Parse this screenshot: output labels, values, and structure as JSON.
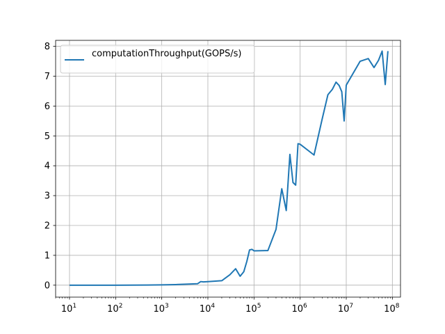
{
  "chart_data": {
    "type": "line",
    "title": "",
    "xlabel": "",
    "ylabel": "",
    "xscale": "log",
    "xlim": [
      5,
      150000000
    ],
    "ylim": [
      -0.4,
      8.2
    ],
    "grid": true,
    "legend_position": "top-left",
    "x_ticks": [
      {
        "value": 10,
        "base": "10",
        "exp": "1"
      },
      {
        "value": 100,
        "base": "10",
        "exp": "2"
      },
      {
        "value": 1000,
        "base": "10",
        "exp": "3"
      },
      {
        "value": 10000,
        "base": "10",
        "exp": "4"
      },
      {
        "value": 100000,
        "base": "10",
        "exp": "5"
      },
      {
        "value": 1000000,
        "base": "10",
        "exp": "6"
      },
      {
        "value": 10000000,
        "base": "10",
        "exp": "7"
      },
      {
        "value": 100000000,
        "base": "10",
        "exp": "8"
      }
    ],
    "y_ticks": [
      {
        "value": 0,
        "label": "0"
      },
      {
        "value": 1,
        "label": "1"
      },
      {
        "value": 2,
        "label": "2"
      },
      {
        "value": 3,
        "label": "3"
      },
      {
        "value": 4,
        "label": "4"
      },
      {
        "value": 5,
        "label": "5"
      },
      {
        "value": 6,
        "label": "6"
      },
      {
        "value": 7,
        "label": "7"
      },
      {
        "value": 8,
        "label": "8"
      }
    ],
    "series": [
      {
        "name": "computationThroughput(GOPS/s)",
        "color": "#1f77b4",
        "x": [
          10,
          100,
          500,
          1000,
          2000,
          6000,
          7000,
          8000,
          10000,
          20000,
          30000,
          40000,
          50000,
          60000,
          70000,
          80000,
          90000,
          100000,
          200000,
          300000,
          400000,
          500000,
          600000,
          700000,
          800000,
          900000,
          1000000,
          2000000,
          3000000,
          4000000,
          5000000,
          6000000,
          7000000,
          8000000,
          9000000,
          10000000,
          20000000,
          30000000,
          40000000,
          50000000,
          60000000,
          70000000,
          80000000
        ],
        "y": [
          0.0,
          0.0,
          0.005,
          0.01,
          0.02,
          0.05,
          0.12,
          0.11,
          0.12,
          0.15,
          0.35,
          0.55,
          0.3,
          0.45,
          0.8,
          1.18,
          1.2,
          1.15,
          1.16,
          1.87,
          3.23,
          2.5,
          4.38,
          3.44,
          3.35,
          4.74,
          4.72,
          4.36,
          5.56,
          6.38,
          6.56,
          6.8,
          6.69,
          6.48,
          5.5,
          6.7,
          7.5,
          7.59,
          7.29,
          7.53,
          7.84,
          6.72,
          7.84
        ]
      }
    ]
  }
}
